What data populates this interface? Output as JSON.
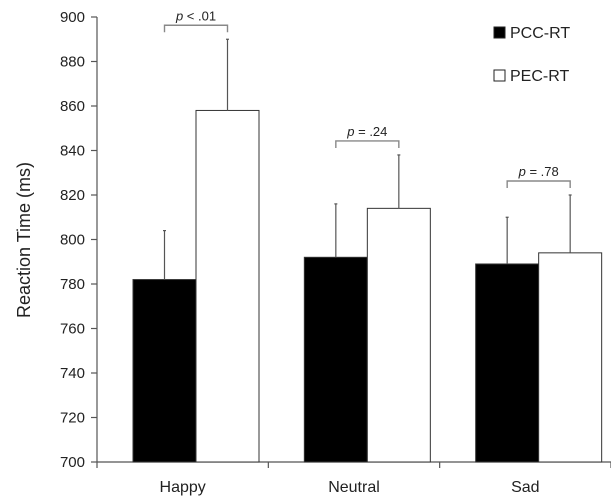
{
  "chart_data": {
    "type": "bar",
    "title": "",
    "xlabel": "",
    "ylabel": "Reaction Time (ms)",
    "ylim": [
      700,
      900
    ],
    "yticks": [
      700,
      720,
      740,
      760,
      780,
      800,
      820,
      840,
      860,
      880,
      900
    ],
    "categories": [
      "Happy",
      "Neutral",
      "Sad"
    ],
    "series": [
      {
        "name": "PCC-RT",
        "values": [
          782,
          792,
          789
        ],
        "errors": [
          22,
          24,
          21
        ],
        "color": "#000000"
      },
      {
        "name": "PEC-RT",
        "values": [
          858,
          814,
          794
        ],
        "errors": [
          32,
          24,
          26
        ],
        "color": "#ffffff"
      }
    ],
    "significance": [
      {
        "category": "Happy",
        "label": "p < .01"
      },
      {
        "category": "Neutral",
        "label": "p = .24"
      },
      {
        "category": "Sad",
        "label": "p = .78"
      }
    ],
    "legend_position": "top-right",
    "grid": false
  }
}
